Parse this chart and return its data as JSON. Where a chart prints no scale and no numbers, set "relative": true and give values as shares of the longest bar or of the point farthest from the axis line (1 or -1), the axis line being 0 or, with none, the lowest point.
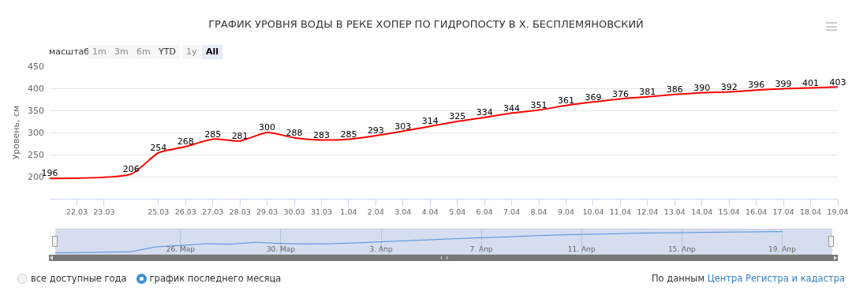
{
  "chart_data": [
    {
      "type": "line",
      "title": "ГРАФИК УРОВНЯ ВОДЫ В РЕКЕ ХОПЕР ПО ГИДРОПОСТУ В Х. БЕСПЛЕМЯНОВСКИЙ",
      "ylabel": "Уровень, см",
      "x": [
        "--03-21",
        "--03-24",
        "--03-25",
        "--03-26",
        "--03-27",
        "--03-28",
        "--03-29",
        "--03-30",
        "--03-31",
        "--04-01",
        "--04-02",
        "--04-03",
        "--04-04",
        "--04-05",
        "--04-06",
        "--04-07",
        "--04-08",
        "--04-09",
        "--04-10",
        "--04-11",
        "--04-12",
        "--04-13",
        "--04-14",
        "--04-15",
        "--04-16",
        "--04-17",
        "--04-18",
        "--04-19"
      ],
      "series": [
        {
          "color": "#ff0000",
          "values": [
            196,
            206,
            254,
            268,
            285,
            281,
            300,
            288,
            283,
            285,
            293,
            303,
            314,
            325,
            334,
            344,
            351,
            361,
            369,
            376,
            381,
            386,
            390,
            392,
            396,
            399,
            401,
            403
          ]
        }
      ],
      "xlim": [
        "--03-21",
        "--04-19"
      ],
      "xticks": [
        {
          "value": "--03-22",
          "label": "22.03"
        },
        {
          "value": "--03-23",
          "label": "23.03"
        },
        {
          "value": "--03-25",
          "label": "25.03"
        },
        {
          "value": "--03-26",
          "label": "26.03"
        },
        {
          "value": "--03-27",
          "label": "27.03"
        },
        {
          "value": "--03-28",
          "label": "28.03"
        },
        {
          "value": "--03-29",
          "label": "29.03"
        },
        {
          "value": "--03-30",
          "label": "30.03"
        },
        {
          "value": "--03-31",
          "label": "31.03"
        },
        {
          "value": "--04-01",
          "label": "1.04"
        },
        {
          "value": "--04-02",
          "label": "2.04"
        },
        {
          "value": "--04-03",
          "label": "3.04"
        },
        {
          "value": "--04-04",
          "label": "4.04"
        },
        {
          "value": "--04-05",
          "label": "5.04"
        },
        {
          "value": "--04-06",
          "label": "6.04"
        },
        {
          "value": "--04-07",
          "label": "7.04"
        },
        {
          "value": "--04-08",
          "label": "8.04"
        },
        {
          "value": "--04-09",
          "label": "9.04"
        },
        {
          "value": "--04-10",
          "label": "10.04"
        },
        {
          "value": "--04-11",
          "label": "11.04"
        },
        {
          "value": "--04-12",
          "label": "12.04"
        },
        {
          "value": "--04-13",
          "label": "13.04"
        },
        {
          "value": "--04-14",
          "label": "14.04"
        },
        {
          "value": "--04-15",
          "label": "15.04"
        },
        {
          "value": "--04-16",
          "label": "16.04"
        },
        {
          "value": "--04-17",
          "label": "17.04"
        },
        {
          "value": "--04-18",
          "label": "18.04"
        },
        {
          "value": "--04-19",
          "label": "19.04"
        }
      ],
      "ylim": [
        150,
        450
      ],
      "yticks": [
        200,
        250,
        300,
        350,
        400,
        450
      ],
      "grid": "y",
      "marker": "none",
      "line_style": "solid",
      "data_labels": true,
      "annotations": [
        "масштаб",
        "1m",
        "3m",
        "6m",
        "YTD",
        "1y",
        "All",
        "все доступные года",
        "график последнего месяца",
        "По данным",
        "Центра Регистра и кадастра"
      ]
    },
    {
      "type": "line",
      "relative": true,
      "x": [
        "--03-21",
        "--03-24",
        "--03-25",
        "--03-26",
        "--03-27",
        "--03-28",
        "--03-29",
        "--03-30",
        "--03-31",
        "--04-01",
        "--04-02",
        "--04-03",
        "--04-04",
        "--04-05",
        "--04-06",
        "--04-07",
        "--04-08",
        "--04-09",
        "--04-10",
        "--04-11",
        "--04-12",
        "--04-13",
        "--04-14",
        "--04-15",
        "--04-16",
        "--04-17",
        "--04-18",
        "--04-19"
      ],
      "series": [
        {
          "color": "#4a8fe0",
          "values": [
            0,
            0.05,
            0.28,
            0.35,
            0.43,
            0.41,
            0.5,
            0.44,
            0.42,
            0.43,
            0.47,
            0.52,
            0.57,
            0.62,
            0.67,
            0.71,
            0.75,
            0.8,
            0.84,
            0.87,
            0.89,
            0.92,
            0.94,
            0.95,
            0.97,
            0.98,
            0.99,
            1
          ]
        }
      ],
      "xlim": [
        "--03-21",
        "--04-21"
      ],
      "xticks": [
        {
          "value": "--03-26",
          "label": "26. Мар"
        },
        {
          "value": "--03-30",
          "label": "30. Мар"
        },
        {
          "value": "--04-03",
          "label": "3. Апр"
        },
        {
          "value": "--04-07",
          "label": "7. Апр"
        },
        {
          "value": "--04-11",
          "label": "11. Апр"
        },
        {
          "value": "--04-15",
          "label": "15. Апр"
        },
        {
          "value": "--04-19",
          "label": "19. Апр"
        }
      ],
      "grid": "x",
      "marker": "none",
      "line_style": "solid"
    }
  ]
}
